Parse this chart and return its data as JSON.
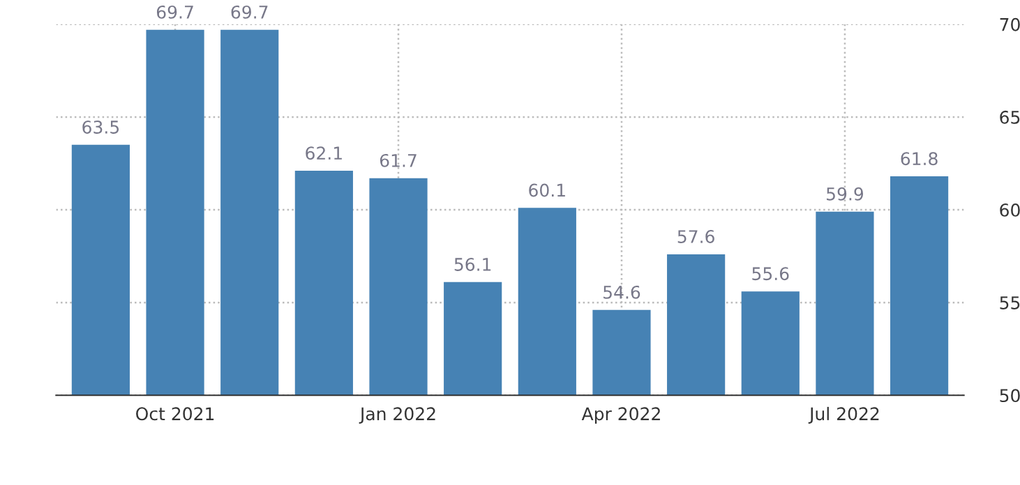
{
  "chart_data": {
    "type": "bar",
    "categories": [
      null,
      "Oct 2021",
      null,
      null,
      "Jan 2022",
      null,
      null,
      "Apr 2022",
      null,
      null,
      "Jul 2022",
      null
    ],
    "values": [
      63.5,
      69.7,
      69.7,
      62.1,
      61.7,
      56.1,
      60.1,
      54.6,
      57.6,
      55.6,
      59.9,
      61.8
    ],
    "color": "#4682b4",
    "data_labels": true,
    "ylim": [
      50,
      70
    ],
    "yticks": [
      50,
      55,
      60,
      65,
      70
    ],
    "grid": true,
    "legend": false
  }
}
